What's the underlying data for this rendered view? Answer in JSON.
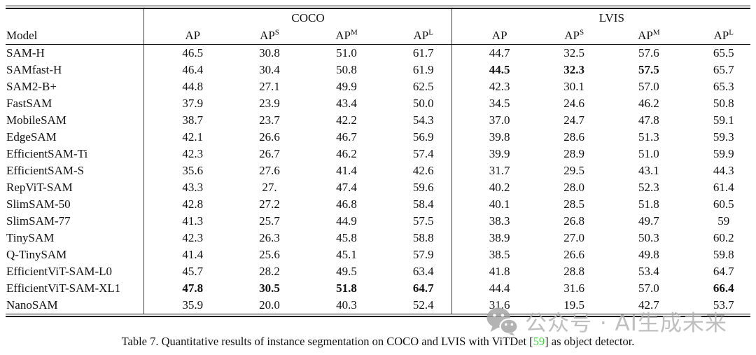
{
  "table": {
    "model_header": "Model",
    "groups": [
      {
        "label": "COCO"
      },
      {
        "label": "LVIS"
      }
    ],
    "metric_columns": [
      {
        "base": "AP",
        "sup": ""
      },
      {
        "base": "AP",
        "sup": "S"
      },
      {
        "base": "AP",
        "sup": "M"
      },
      {
        "base": "AP",
        "sup": "L"
      }
    ],
    "rows": [
      {
        "model": "SAM-H",
        "values": [
          "46.5",
          "30.8",
          "51.0",
          "61.7",
          "44.7",
          "32.5",
          "57.6",
          "65.5"
        ],
        "bold": [
          0,
          0,
          0,
          0,
          0,
          0,
          0,
          0
        ]
      },
      {
        "model": "SAMfast-H",
        "values": [
          "46.4",
          "30.4",
          "50.8",
          "61.9",
          "44.5",
          "32.3",
          "57.5",
          "65.7"
        ],
        "bold": [
          0,
          0,
          0,
          0,
          1,
          1,
          1,
          0
        ]
      },
      {
        "model": "SAM2-B+",
        "values": [
          "44.8",
          "27.1",
          "49.9",
          "62.5",
          "42.3",
          "30.1",
          "57.0",
          "65.3"
        ],
        "bold": [
          0,
          0,
          0,
          0,
          0,
          0,
          0,
          0
        ]
      },
      {
        "model": "FastSAM",
        "values": [
          "37.9",
          "23.9",
          "43.4",
          "50.0",
          "34.5",
          "24.6",
          "46.2",
          "50.8"
        ],
        "bold": [
          0,
          0,
          0,
          0,
          0,
          0,
          0,
          0
        ]
      },
      {
        "model": "MobileSAM",
        "values": [
          "38.7",
          "23.7",
          "42.2",
          "54.3",
          "37.0",
          "24.7",
          "47.8",
          "59.1"
        ],
        "bold": [
          0,
          0,
          0,
          0,
          0,
          0,
          0,
          0
        ]
      },
      {
        "model": "EdgeSAM",
        "values": [
          "42.1",
          "26.6",
          "46.7",
          "56.9",
          "39.8",
          "28.6",
          "51.3",
          "59.3"
        ],
        "bold": [
          0,
          0,
          0,
          0,
          0,
          0,
          0,
          0
        ]
      },
      {
        "model": "EfficientSAM-Ti",
        "values": [
          "42.3",
          "26.7",
          "46.2",
          "57.4",
          "39.9",
          "28.9",
          "51.0",
          "59.9"
        ],
        "bold": [
          0,
          0,
          0,
          0,
          0,
          0,
          0,
          0
        ]
      },
      {
        "model": "EfficientSAM-S",
        "values": [
          "35.6",
          "27.6",
          "41.4",
          "42.6",
          "31.7",
          "29.5",
          "43.1",
          "44.3"
        ],
        "bold": [
          0,
          0,
          0,
          0,
          0,
          0,
          0,
          0
        ]
      },
      {
        "model": "RepViT-SAM",
        "values": [
          "43.3",
          "27.",
          "47.4",
          "59.6",
          "40.2",
          "28.0",
          "52.3",
          "61.4"
        ],
        "bold": [
          0,
          0,
          0,
          0,
          0,
          0,
          0,
          0
        ]
      },
      {
        "model": "SlimSAM-50",
        "values": [
          "42.8",
          "27.2",
          "46.8",
          "58.4",
          "40.1",
          "28.5",
          "51.8",
          "60.5"
        ],
        "bold": [
          0,
          0,
          0,
          0,
          0,
          0,
          0,
          0
        ]
      },
      {
        "model": "SlimSAM-77",
        "values": [
          "41.3",
          "25.7",
          "44.9",
          "57.5",
          "38.3",
          "26.8",
          "49.7",
          "59"
        ],
        "bold": [
          0,
          0,
          0,
          0,
          0,
          0,
          0,
          0
        ]
      },
      {
        "model": "TinySAM",
        "values": [
          "42.3",
          "26.3",
          "45.8",
          "58.8",
          "38.9",
          "27.0",
          "50.3",
          "60.2"
        ],
        "bold": [
          0,
          0,
          0,
          0,
          0,
          0,
          0,
          0
        ]
      },
      {
        "model": "Q-TinySAM",
        "values": [
          "41.4",
          "25.6",
          "45.1",
          "57.9",
          "38.5",
          "26.6",
          "49.8",
          "59.8"
        ],
        "bold": [
          0,
          0,
          0,
          0,
          0,
          0,
          0,
          0
        ]
      },
      {
        "model": "EfficientViT-SAM-L0",
        "values": [
          "45.7",
          "28.2",
          "49.5",
          "63.4",
          "41.8",
          "28.8",
          "53.4",
          "64.7"
        ],
        "bold": [
          0,
          0,
          0,
          0,
          0,
          0,
          0,
          0
        ]
      },
      {
        "model": "EfficientViT-SAM-XL1",
        "values": [
          "47.8",
          "30.5",
          "51.8",
          "64.7",
          "44.4",
          "31.6",
          "57.0",
          "66.4"
        ],
        "bold": [
          1,
          1,
          1,
          1,
          0,
          0,
          0,
          1
        ]
      },
      {
        "model": "NanoSAM",
        "values": [
          "35.9",
          "20.0",
          "40.3",
          "52.4",
          "31.6",
          "19.5",
          "42.7",
          "53.7"
        ],
        "bold": [
          0,
          0,
          0,
          0,
          0,
          0,
          0,
          0
        ]
      }
    ]
  },
  "caption": {
    "prefix": "Table 7. Quantitative results of instance segmentation on COCO and LVIS with ViTDet [",
    "citation": "59",
    "suffix": "] as object detector."
  },
  "watermark": {
    "text": "公众号 · AI生成未来",
    "icon": "wechat-logo"
  },
  "colors": {
    "citation_green": "#3ddc3d",
    "watermark_gray": "#b4b4b4",
    "watermark_icon_gray": "#a6a6a6",
    "rule_black": "#141414"
  }
}
